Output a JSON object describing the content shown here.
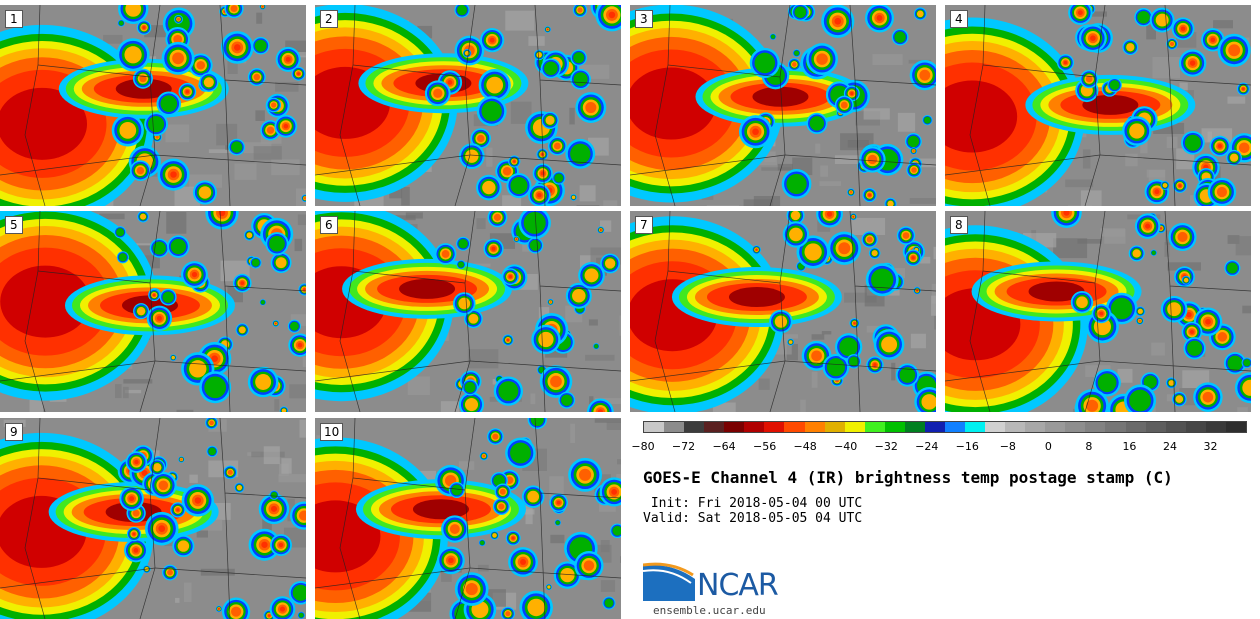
{
  "panels": [
    {
      "label": "1",
      "seed": 11
    },
    {
      "label": "2",
      "seed": 23
    },
    {
      "label": "3",
      "seed": 37
    },
    {
      "label": "4",
      "seed": 41
    },
    {
      "label": "5",
      "seed": 53
    },
    {
      "label": "6",
      "seed": 67
    },
    {
      "label": "7",
      "seed": 71
    },
    {
      "label": "8",
      "seed": 83
    },
    {
      "label": "9",
      "seed": 97
    },
    {
      "label": "10",
      "seed": 103
    }
  ],
  "colorbar": {
    "colors": [
      "#c8c8c8",
      "#8c8c8c",
      "#3c3c3c",
      "#5a2020",
      "#7a0000",
      "#b00000",
      "#e01000",
      "#ff4a00",
      "#ff8000",
      "#e0b000",
      "#f0f000",
      "#40f020",
      "#00c000",
      "#008020",
      "#1020b0",
      "#1080ff",
      "#00f0f0",
      "#d0d0d0",
      "#b8b8b8",
      "#a8a8a8",
      "#9a9a9a",
      "#8e8e8e",
      "#828282",
      "#767676",
      "#6a6a6a",
      "#5e5e5e",
      "#525252",
      "#464646",
      "#3a3a3a",
      "#2e2e2e"
    ],
    "ticks": [
      "-80",
      "-72",
      "-64",
      "-56",
      "-48",
      "-40",
      "-32",
      "-24",
      "-16",
      "-8",
      "0",
      "8",
      "16",
      "24",
      "32"
    ]
  },
  "title": "GOES-E Channel 4 (IR) brightness temp postage stamp (C)",
  "init_text": " Init: Fri 2018-05-04 00 UTC",
  "valid_text": "Valid: Sat 2018-05-05 04 UTC",
  "logo": {
    "name": "NCAR-logo",
    "text": "NCAR"
  },
  "site": "ensemble.ucar.edu"
}
